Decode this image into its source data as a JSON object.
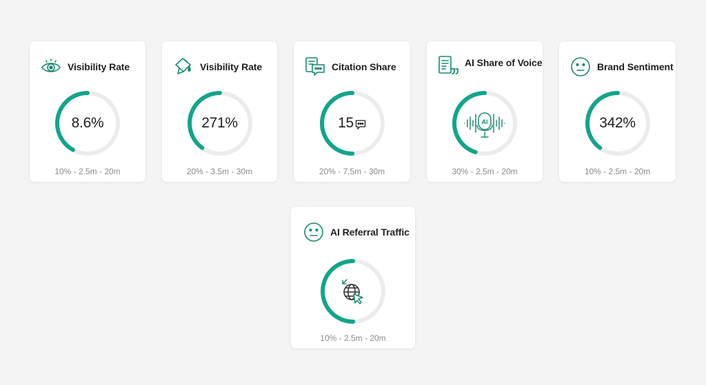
{
  "colors": {
    "accent": "#12a58b",
    "track": "#ececec",
    "icon": "#1a8a72"
  },
  "cards": [
    {
      "title": "Visibility Rate",
      "icon": "eye-icon",
      "value": "8.6%",
      "range": "10% - 2.5m - 20m",
      "progress": 0.42
    },
    {
      "title": "Visibility Rate",
      "icon": "bucket-icon",
      "value": "271%",
      "range": "20% - 3.5m - 30m",
      "progress": 0.4
    },
    {
      "title": "Citation Share",
      "icon": "chat-document-icon",
      "value": "15",
      "range": "20% - 7.5m - 30m",
      "progress": 0.5
    },
    {
      "title": "AI Share of Voice",
      "icon": "document-quote-icon",
      "value": "",
      "range": "30% - 2.5m - 20m",
      "progress": 0.45
    },
    {
      "title": "Brand Sentiment",
      "icon": "neutral-face-icon",
      "value": "342%",
      "range": "10% - 2.5m - 20m",
      "progress": 0.4
    },
    {
      "title": "AI Referral Traffic",
      "icon": "neutral-face-icon",
      "value": "",
      "range": "10% - 2.5m - 20m",
      "progress": 0.5
    }
  ]
}
